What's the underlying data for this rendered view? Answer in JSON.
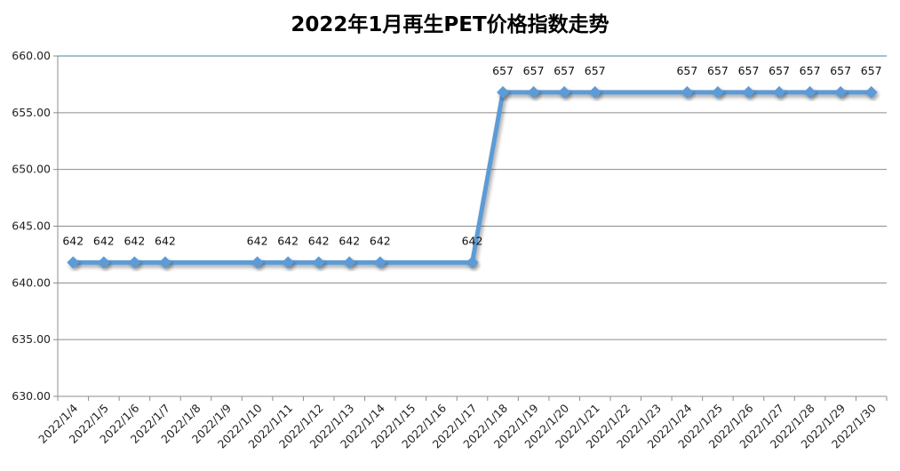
{
  "chart_data": {
    "type": "line",
    "title": "2022年1月再生PET价格指数走势",
    "xlabel": "",
    "ylabel": "",
    "categories": [
      "2022/1/4",
      "2022/1/5",
      "2022/1/6",
      "2022/1/7",
      "2022/1/8",
      "2022/1/9",
      "2022/1/10",
      "2022/1/11",
      "2022/1/12",
      "2022/1/13",
      "2022/1/14",
      "2022/1/15",
      "2022/1/16",
      "2022/1/17",
      "2022/1/18",
      "2022/1/19",
      "2022/1/20",
      "2022/1/21",
      "2022/1/22",
      "2022/1/23",
      "2022/1/24",
      "2022/1/25",
      "2022/1/26",
      "2022/1/27",
      "2022/1/28",
      "2022/1/29",
      "2022/1/30"
    ],
    "series": [
      {
        "values": [
          641.8,
          641.8,
          641.8,
          641.8,
          null,
          null,
          641.8,
          641.8,
          641.8,
          641.8,
          641.8,
          null,
          null,
          641.8,
          656.8,
          656.8,
          656.8,
          656.8,
          null,
          null,
          656.8,
          656.8,
          656.8,
          656.8,
          656.8,
          656.8,
          656.8
        ],
        "data_labels": [
          "642",
          "642",
          "642",
          "642",
          null,
          null,
          "642",
          "642",
          "642",
          "642",
          "642",
          null,
          null,
          "642",
          "657",
          "657",
          "657",
          "657",
          null,
          null,
          "657",
          "657",
          "657",
          "657",
          "657",
          "657",
          "657"
        ],
        "color": "#5b9bd5"
      }
    ],
    "ylim": [
      630,
      660
    ],
    "yticks": [
      "630.00",
      "635.00",
      "640.00",
      "645.00",
      "650.00",
      "655.00",
      "660.00"
    ],
    "grid": true,
    "legend": "none"
  }
}
